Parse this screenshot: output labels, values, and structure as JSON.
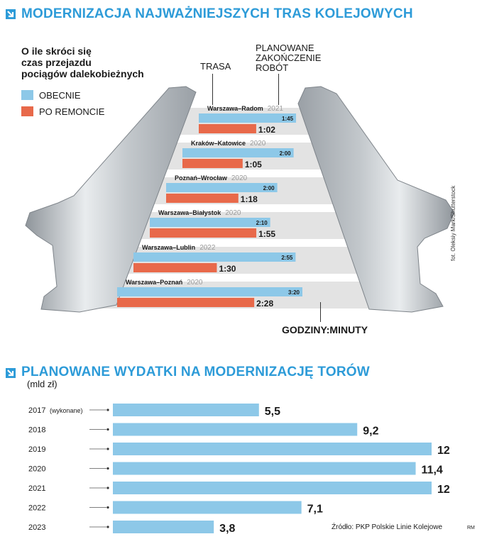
{
  "header1": {
    "title": "MODERNIZACJA NAJWAŻNIEJSZYCH TRAS KOLEJOWYCH"
  },
  "chart1_labels": {
    "subtitle_lines": [
      "O ile skróci się",
      "czas przejazdu",
      "pociągów dalekobieżnych"
    ],
    "legend_now": "OBECNIE",
    "legend_after": "PO REMONCIE",
    "trasa": "TRASA",
    "planned_lines": [
      "PLANOWANE",
      "ZAKOŃCZENIE",
      "ROBÓT"
    ],
    "units": "GODZINY:MINUTY",
    "credit": "fot. Oleksiy Mark/Shutterstock"
  },
  "header2": {
    "title": "PLANOWANE WYDATKI  NA MODERNIZACJĘ TORÓW",
    "unit": "(mld zł)"
  },
  "source": "Źródło: PKP Polskie Linie Kolejowe",
  "author": "RM",
  "colors": {
    "accent": "#2d9bd8",
    "now": "#8dc8e8",
    "after": "#e8694a",
    "rail": "#c8ccd0",
    "sleeper": "#e3e3e3"
  },
  "chart_data": [
    {
      "type": "bar",
      "title": "MODERNIZACJA NAJWAŻNIEJSZYCH TRAS KOLEJOWYCH",
      "categories": [
        "Warszawa–Radom",
        "Kraków–Katowice",
        "Poznań–Wrocław",
        "Warszawa–Białystok",
        "Warszawa–Lublin",
        "Warszawa–Poznań"
      ],
      "completion_year": [
        "2021",
        "2020",
        "2020",
        "2020",
        "2022",
        "2020"
      ],
      "series": [
        {
          "name": "OBECNIE",
          "values": [
            "1:45",
            "2:00",
            "2:00",
            "2:10",
            "2:55",
            "3:20"
          ]
        },
        {
          "name": "PO REMONCIE",
          "values": [
            "1:02",
            "1:05",
            "1:18",
            "1:55",
            "1:30",
            "2:28"
          ]
        }
      ]
    },
    {
      "type": "bar",
      "title": "PLANOWANE WYDATKI  NA MODERNIZACJĘ TORÓW",
      "ylabel": "(mld zł)",
      "categories": [
        "2017",
        "2018",
        "2019",
        "2020",
        "2021",
        "2022",
        "2023"
      ],
      "notes": [
        "(wykonane)",
        "",
        "",
        "",
        "",
        "",
        ""
      ],
      "values": [
        5.5,
        9.2,
        12,
        11.4,
        12,
        7.1,
        3.8
      ],
      "value_labels": [
        "5,5",
        "9,2",
        "12",
        "11,4",
        "12",
        "7,1",
        "3,8"
      ],
      "xlim": [
        0,
        12
      ]
    }
  ]
}
